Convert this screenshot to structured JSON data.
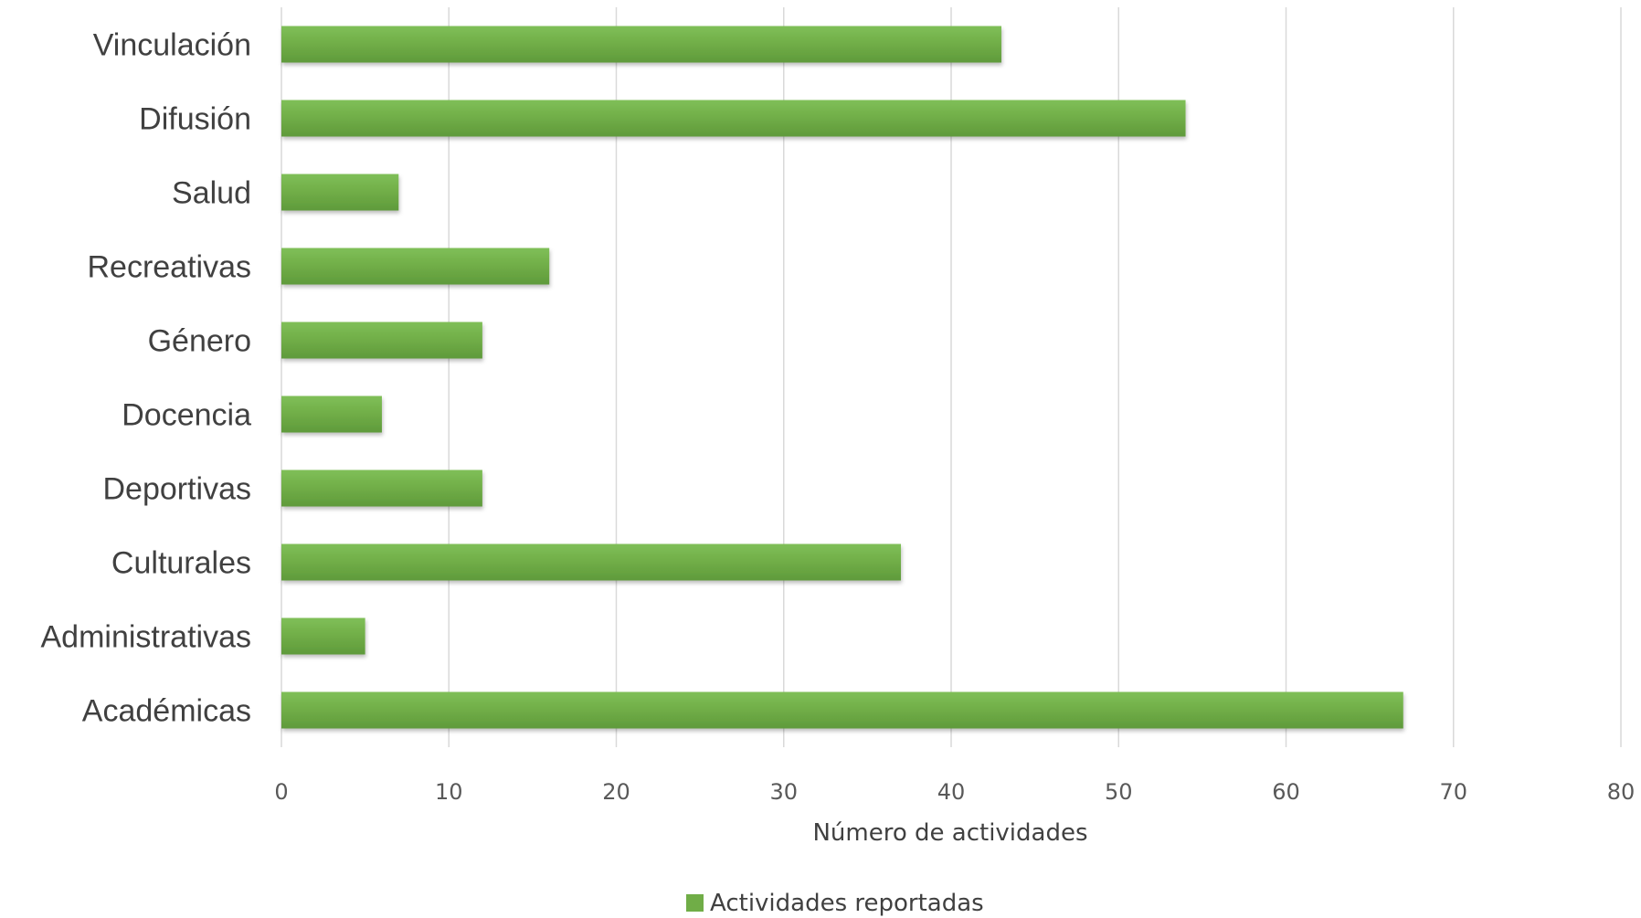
{
  "chart_data": {
    "type": "bar",
    "orientation": "horizontal",
    "categories": [
      "Vinculación",
      "Difusión",
      "Salud",
      "Recreativas",
      "Género",
      "Docencia",
      "Deportivas",
      "Culturales",
      "Administrativas",
      "Académicas"
    ],
    "series": [
      {
        "name": "Actividades reportadas",
        "values": [
          43,
          54,
          7,
          16,
          12,
          6,
          12,
          37,
          5,
          67
        ],
        "color": "#70AD47"
      }
    ],
    "xlabel": "Número de actividades",
    "xlim": [
      0,
      80
    ],
    "xticks": [
      0,
      10,
      20,
      30,
      40,
      50,
      60,
      70,
      80
    ],
    "grid": "vertical",
    "legend_position": "bottom"
  }
}
